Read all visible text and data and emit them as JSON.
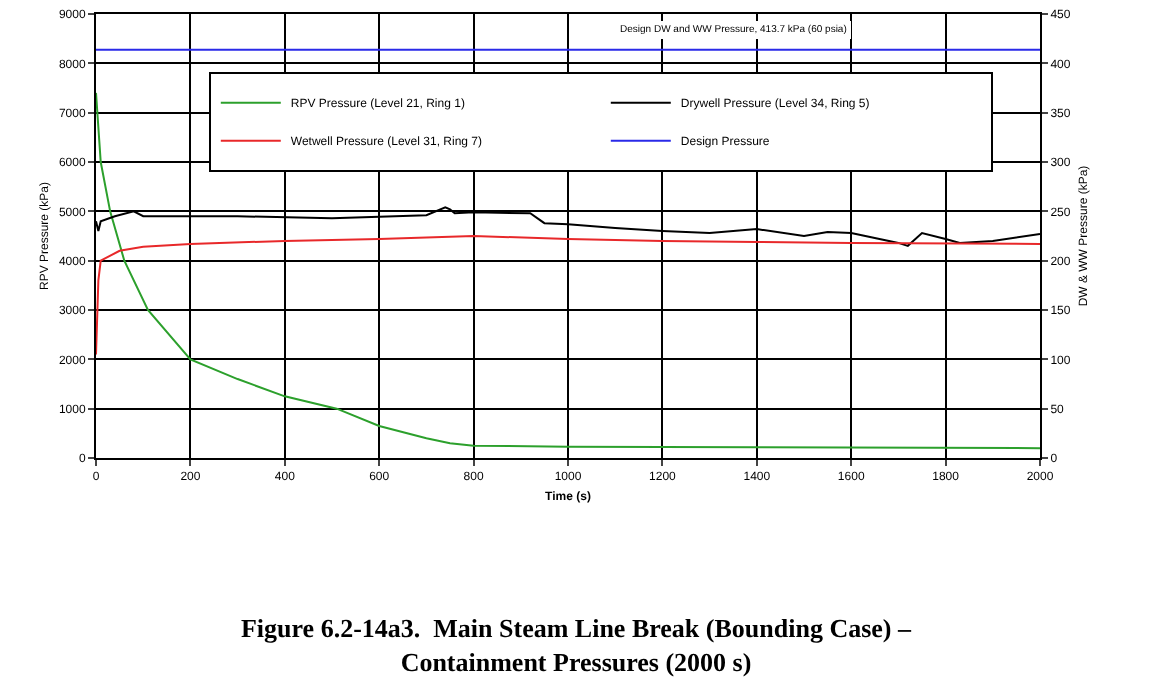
{
  "chart_data": {
    "type": "line",
    "title": "Figure 6.2-14a3.  Main Steam Line Break (Bounding Case) –\nContainment Pressures (2000 s)",
    "xlabel": "Time (s)",
    "ylabel": "RPV Pressure (kPa)",
    "y2label": "DW & WW Pressure (kPa)",
    "xlim": [
      0,
      2000
    ],
    "xticks": [
      0,
      200,
      400,
      600,
      800,
      1000,
      1200,
      1400,
      1600,
      1800,
      2000
    ],
    "ylim": [
      0,
      9000
    ],
    "yticks": [
      0,
      1000,
      2000,
      3000,
      4000,
      5000,
      6000,
      7000,
      8000,
      9000
    ],
    "y2lim": [
      0,
      450
    ],
    "y2ticks": [
      0,
      50,
      100,
      150,
      200,
      250,
      300,
      350,
      400,
      450
    ],
    "grid": true,
    "legend": "top right",
    "marker": "none",
    "line_style": "solid",
    "series": [
      {
        "name": "RPV Pressure (Level 21, Ring 1)",
        "color": "#2ca02c",
        "x": [
          0,
          10,
          30,
          60,
          110,
          200,
          300,
          400,
          510,
          600,
          700,
          750,
          800,
          1000,
          1400,
          2000
        ],
        "values": [
          7400,
          6000,
          5000,
          4000,
          3000,
          2000,
          1600,
          1250,
          1000,
          650,
          400,
          300,
          250,
          230,
          220,
          200
        ]
      },
      {
        "name": "Drywell Pressure (Level 34, Ring 5)",
        "color": "#000000",
        "axis": "y2",
        "x": [
          0,
          5,
          10,
          40,
          80,
          100,
          300,
          500,
          700,
          740,
          750,
          760,
          800,
          920,
          950,
          1000,
          1100,
          1200,
          1300,
          1400,
          1500,
          1550,
          1600,
          1700,
          1720,
          1750,
          1800,
          1830,
          1900,
          2000
        ],
        "values": [
          240,
          230,
          240,
          245,
          250,
          245,
          245,
          243,
          246,
          254,
          252,
          248,
          249,
          248,
          238,
          237,
          233,
          230,
          228,
          232,
          225,
          229,
          228,
          218,
          215,
          228,
          222,
          218,
          220,
          227
        ]
      },
      {
        "name": "Wetwell Pressure (Level 31, Ring 7)",
        "color": "#e8282a",
        "axis": "y2",
        "x": [
          0,
          5,
          10,
          50,
          100,
          200,
          400,
          600,
          800,
          1000,
          1200,
          1400,
          1600,
          2000
        ],
        "values": [
          105,
          180,
          200,
          210,
          214,
          217,
          220,
          222,
          225,
          222,
          220,
          219,
          218,
          217
        ]
      },
      {
        "name": "Design Pressure",
        "color": "#2a2ae8",
        "axis": "y2",
        "x": [
          0,
          2000
        ],
        "values": [
          413.7,
          413.7
        ]
      }
    ],
    "annotations": [
      "Design DW and WW Pressure, 413.7 kPa (60 psia)"
    ]
  }
}
